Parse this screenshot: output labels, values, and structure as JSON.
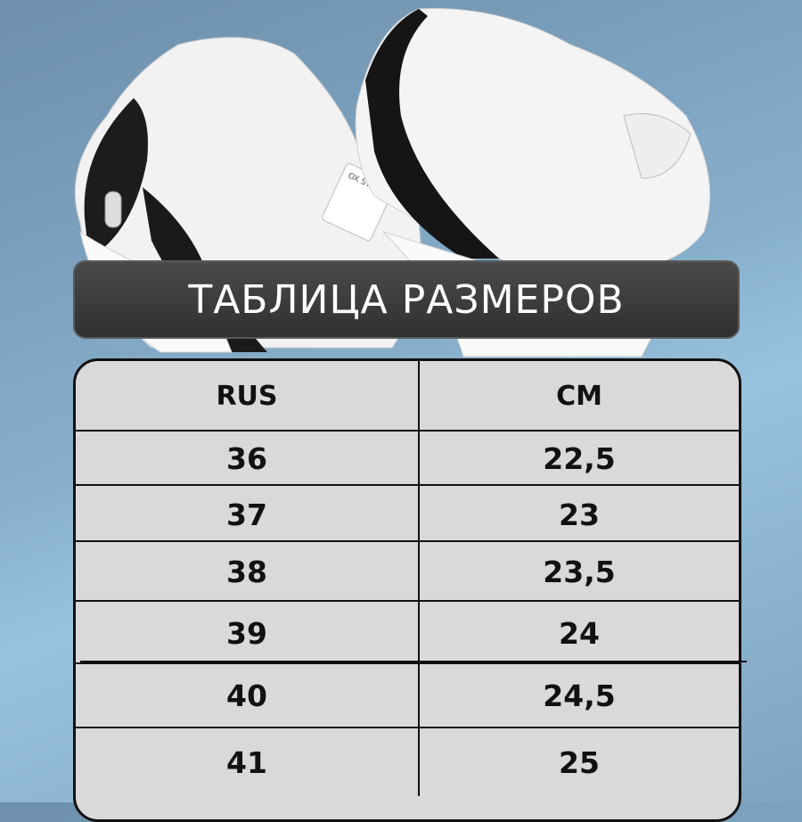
{
  "banner": {
    "title": "ТАБЛИЦА РАЗМЕРОВ"
  },
  "photo": {
    "tag_text": "OX STREET"
  },
  "colors": {
    "background": "#86aecb",
    "banner": "#3a3a3a",
    "table": "#d9d9d9"
  },
  "table": {
    "headers": [
      "RUS",
      "CM"
    ],
    "rows": [
      [
        "36",
        "22,5"
      ],
      [
        "37",
        "23"
      ],
      [
        "38",
        "23,5"
      ],
      [
        "39",
        "24"
      ],
      [
        "40",
        "24,5"
      ],
      [
        "41",
        "25"
      ]
    ]
  }
}
